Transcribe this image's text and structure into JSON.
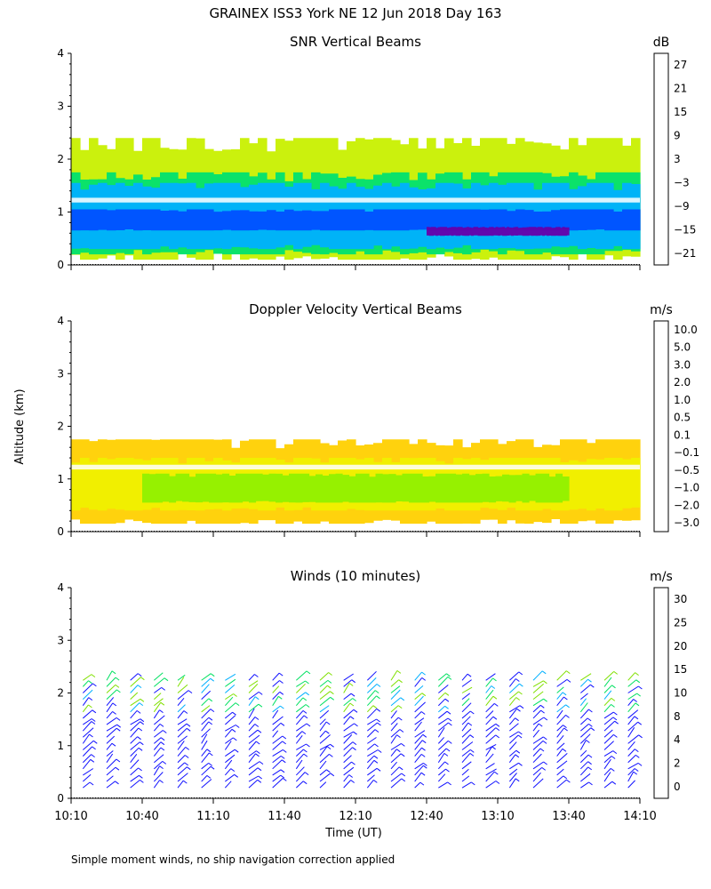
{
  "title": "GRAINEX ISS3 York NE  12 Jun 2018 Day 163",
  "ylabel": "Altitude (km)",
  "xlabel": "Time (UT)",
  "footnote": "Simple moment winds, no ship navigation correction applied",
  "x_ticks": [
    "10:10",
    "10:40",
    "11:10",
    "11:40",
    "12:10",
    "12:40",
    "13:10",
    "13:40",
    "14:10"
  ],
  "y_ticks": [
    "0",
    "1",
    "2",
    "3",
    "4"
  ],
  "chart_data": [
    {
      "type": "heatmap",
      "title": "SNR Vertical Beams",
      "units": "dB",
      "xlabel": "Time (UT)",
      "ylabel": "Altitude (km)",
      "x_range": [
        "10:10",
        "14:10"
      ],
      "ylim": [
        0,
        4
      ],
      "colorbar": {
        "labels": [
          "27",
          "21",
          "15",
          "9",
          "3",
          "−3",
          "−9",
          "−15",
          "−21"
        ],
        "colors": [
          "#ffc000",
          "#ff8000",
          "#ff2000",
          "#3a0a4a",
          "#6600aa",
          "#0050ff",
          "#00b0ff",
          "#00e070",
          "#c8f000"
        ]
      },
      "bands": [
        {
          "level": "−21",
          "alt_range": [
            0.1,
            2.4
          ],
          "time_range": [
            "10:10",
            "14:10"
          ]
        },
        {
          "level": "−15",
          "alt_range": [
            0.2,
            1.75
          ],
          "time_range": [
            "10:10",
            "14:10"
          ]
        },
        {
          "level": "−9",
          "alt_range": [
            0.3,
            1.55
          ],
          "time_range": [
            "10:10",
            "14:10"
          ]
        },
        {
          "level": "−3",
          "alt_range": [
            0.65,
            1.05
          ],
          "time_range": [
            "10:10",
            "14:10"
          ]
        },
        {
          "level": "3",
          "alt_range": [
            0.55,
            0.72
          ],
          "time_range": [
            "12:40",
            "13:40"
          ]
        }
      ]
    },
    {
      "type": "heatmap",
      "title": "Doppler Velocity Vertical Beams",
      "units": "m/s",
      "xlabel": "Time (UT)",
      "ylabel": "Altitude (km)",
      "x_range": [
        "10:10",
        "14:10"
      ],
      "ylim": [
        0,
        4
      ],
      "colorbar": {
        "labels": [
          "10.0",
          "5.0",
          "3.0",
          "2.0",
          "1.0",
          "0.5",
          "0.1",
          "−0.1",
          "−0.5",
          "−1.0",
          "−2.0",
          "−3.0"
        ],
        "colors": [
          "#2a0a2a",
          "#4a0088",
          "#3a10d0",
          "#0050ff",
          "#00b0ff",
          "#00e000",
          "#90f000",
          "#f0f000",
          "#ffd000",
          "#ffa000",
          "#ff6000",
          "#ff1010"
        ]
      },
      "bands": [
        {
          "level": "−0.5",
          "alt_range": [
            0.15,
            1.75
          ],
          "time_range": [
            "10:10",
            "14:10"
          ]
        },
        {
          "level": "−0.1",
          "alt_range": [
            0.4,
            1.4
          ],
          "time_range": [
            "10:10",
            "14:10"
          ]
        },
        {
          "level": "0.1",
          "alt_range": [
            0.55,
            1.1
          ],
          "time_range": [
            "10:40",
            "13:40"
          ]
        }
      ]
    },
    {
      "type": "scatter",
      "title": "Winds (10 minutes)",
      "units": "m/s",
      "xlabel": "Time (UT)",
      "ylabel": "Altitude (km)",
      "x_range": [
        "10:10",
        "14:10"
      ],
      "ylim": [
        0,
        4
      ],
      "averaging_minutes": 10,
      "colorbar": {
        "labels": [
          "30",
          "25",
          "20",
          "15",
          "10",
          "8",
          "4",
          "2",
          "0"
        ],
        "colors": [
          "#ff1000",
          "#ff5000",
          "#ffa000",
          "#80e000",
          "#00e060",
          "#00b0ff",
          "#1010ff",
          "#5a0088",
          "#000000"
        ]
      },
      "profile_times": [
        "10:15",
        "10:25",
        "10:35",
        "10:45",
        "10:55",
        "11:05",
        "11:15",
        "11:25",
        "11:35",
        "11:45",
        "11:55",
        "12:05",
        "12:15",
        "12:25",
        "12:35",
        "12:45",
        "12:55",
        "13:05",
        "13:15",
        "13:25",
        "13:35",
        "13:45",
        "13:55",
        "14:05"
      ]
    }
  ]
}
